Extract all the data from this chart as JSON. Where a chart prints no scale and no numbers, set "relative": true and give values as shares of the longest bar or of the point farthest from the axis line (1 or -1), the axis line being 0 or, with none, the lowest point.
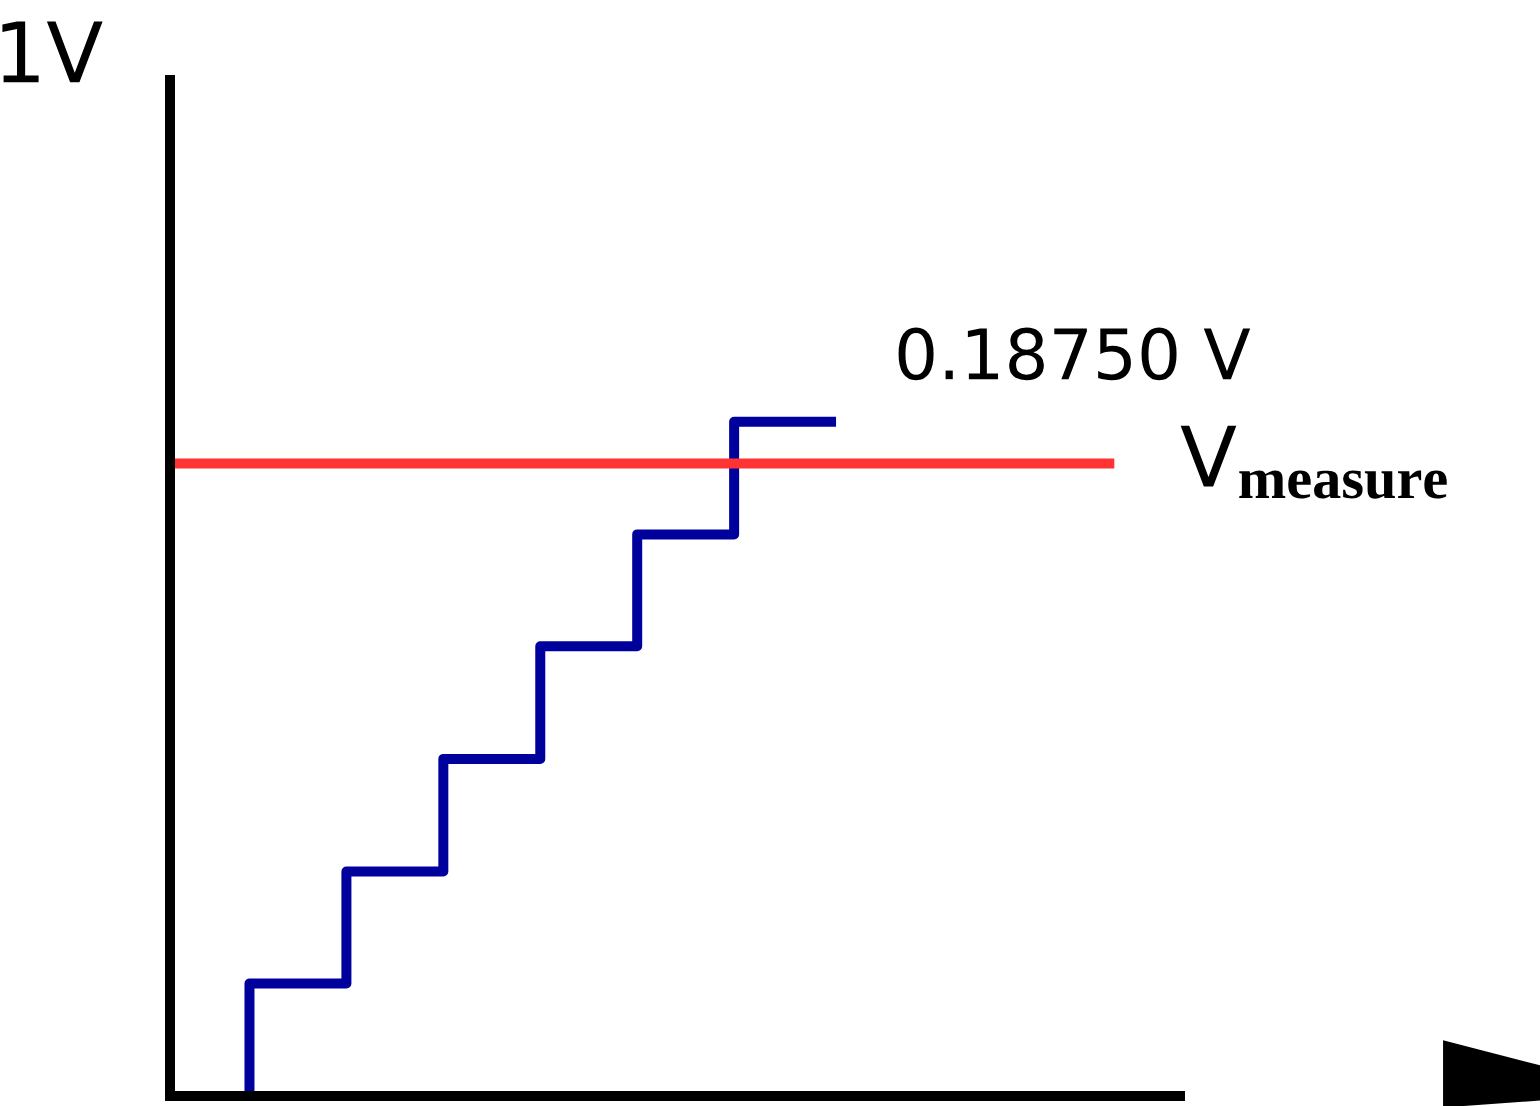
{
  "chart_data": {
    "type": "step",
    "relative": true,
    "ylabel": "1V",
    "categories": [
      null,
      null,
      null,
      null,
      null,
      null,
      null
    ],
    "series": [
      {
        "color": "#00009c",
        "values": [
          0,
          0.167,
          0.333,
          0.5,
          0.667,
          0.833,
          1
        ]
      }
    ],
    "ref_lines": [
      {
        "axis": "y",
        "value": 0.938,
        "label": "V$_{measure}$",
        "color": "#ff3333"
      }
    ],
    "annotations": [
      "0.18750 V"
    ]
  }
}
